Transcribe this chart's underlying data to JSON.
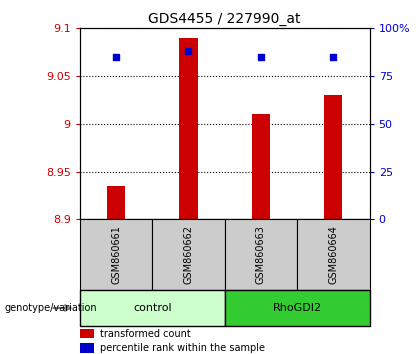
{
  "title": "GDS4455 / 227990_at",
  "samples": [
    "GSM860661",
    "GSM860662",
    "GSM860663",
    "GSM860664"
  ],
  "transformed_counts": [
    8.935,
    9.09,
    9.01,
    9.03
  ],
  "percentile_ranks_pct": [
    85,
    88,
    85,
    85
  ],
  "ylim_left": [
    8.9,
    9.1
  ],
  "ylim_right": [
    0,
    100
  ],
  "yticks_left": [
    8.9,
    8.95,
    9.0,
    9.05,
    9.1
  ],
  "ytick_labels_left": [
    "8.9",
    "8.95",
    "9",
    "9.05",
    "9.1"
  ],
  "yticks_right": [
    0,
    25,
    50,
    75,
    100
  ],
  "ytick_labels_right": [
    "0",
    "25",
    "50",
    "75",
    "100%"
  ],
  "bar_color": "#cc0000",
  "dot_color": "#0000cc",
  "bar_bottom": 8.9,
  "bar_width": 0.25,
  "control_color": "#ccffcc",
  "rhogdi2_color": "#33cc33",
  "sample_bg": "#cccccc",
  "legend_bar_label": "transformed count",
  "legend_dot_label": "percentile rank within the sample",
  "group_label": "genotype/variation"
}
